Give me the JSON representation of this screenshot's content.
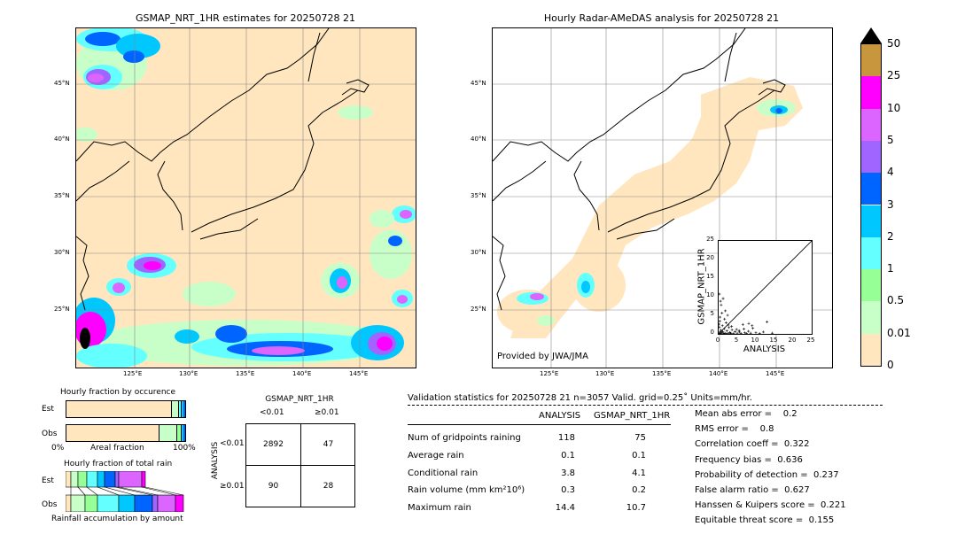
{
  "left_map": {
    "title": "GSMAP_NRT_1HR estimates for 20250728 21",
    "lat_labels": [
      "45°N",
      "40°N",
      "35°N",
      "30°N",
      "25°N"
    ],
    "lon_labels": [
      "125°E",
      "130°E",
      "135°E",
      "140°E",
      "145°E"
    ]
  },
  "right_map": {
    "title": "Hourly Radar-AMeDAS analysis for 20250728 21",
    "lat_labels": [
      "45°N",
      "40°N",
      "35°N",
      "30°N",
      "25°N"
    ],
    "lon_labels": [
      "125°E",
      "130°E",
      "135°E",
      "140°E",
      "145°E"
    ],
    "credit": "Provided by JWA/JMA"
  },
  "colorbar": {
    "labels": [
      "50",
      "25",
      "10",
      "5",
      "4",
      "3",
      "2",
      "1",
      "0.5",
      "0.01",
      "0"
    ],
    "colors": [
      "#c8963c",
      "#ff00ff",
      "#dc64ff",
      "#a064ff",
      "#0064ff",
      "#00c8ff",
      "#64ffff",
      "#96ff96",
      "#c8ffc8",
      "#ffe6be"
    ],
    "over_color": "#000000"
  },
  "occurrence": {
    "title": "Hourly fraction by occurence",
    "rows": [
      "Est",
      "Obs"
    ],
    "axis_left": "0%",
    "axis_mid": "Areal fraction",
    "axis_right": "100%"
  },
  "total_rain": {
    "title": "Hourly fraction of total rain",
    "rows": [
      "Est",
      "Obs"
    ],
    "footer": "Rainfall accumulation by amount"
  },
  "contingency": {
    "title": "GSMAP_NRT_1HR",
    "col_labels": [
      "<0.01",
      "≥0.01"
    ],
    "row_axis": "ANALYSIS",
    "row_labels": [
      "<0.01",
      "≥0.01"
    ],
    "cells": [
      [
        "2892",
        "47"
      ],
      [
        "90",
        "28"
      ]
    ]
  },
  "validation": {
    "header": "Validation statistics for 20250728 21  n=3057 Valid. grid=0.25˚ Units=mm/hr.",
    "col_analysis": "ANALYSIS",
    "col_gsmap": "GSMAP_NRT_1HR",
    "rows": [
      {
        "label": "Num of gridpoints raining",
        "analysis": "118",
        "gsmap": "75"
      },
      {
        "label": "Average rain",
        "analysis": "0.1",
        "gsmap": "0.1"
      },
      {
        "label": "Conditional rain",
        "analysis": "3.8",
        "gsmap": "4.1"
      },
      {
        "label": "Rain volume (mm km²10⁶)",
        "analysis": "0.3",
        "gsmap": "0.2"
      },
      {
        "label": "Maximum rain",
        "analysis": "14.4",
        "gsmap": "10.7"
      }
    ],
    "scores": [
      "Mean abs error =    0.2",
      "RMS error =    0.8",
      "Correlation coeff =  0.322",
      "Frequency bias =  0.636",
      "Probability of detection =  0.237",
      "False alarm ratio =  0.627",
      "Hanssen & Kuipers score =  0.221",
      "Equitable threat score =  0.155"
    ]
  },
  "chart_data": {
    "type": "scatter",
    "title": "",
    "xlabel": "ANALYSIS",
    "ylabel": "GSMAP_NRT_1HR",
    "xlim": [
      0,
      25
    ],
    "ylim": [
      0,
      25
    ],
    "x_ticks": [
      "0",
      "5",
      "10",
      "15",
      "20",
      "25"
    ],
    "y_ticks": [
      "0",
      "5",
      "10",
      "15",
      "20",
      "25"
    ],
    "diagonal": true,
    "points": [
      [
        0.2,
        0.1
      ],
      [
        0.3,
        0.5
      ],
      [
        0.5,
        0.2
      ],
      [
        0.6,
        1.0
      ],
      [
        0.8,
        0.3
      ],
      [
        1.0,
        2.2
      ],
      [
        1.1,
        0.6
      ],
      [
        1.3,
        0.1
      ],
      [
        1.5,
        1.4
      ],
      [
        1.7,
        0.2
      ],
      [
        2.0,
        3.0
      ],
      [
        2.2,
        0.8
      ],
      [
        2.5,
        0.1
      ],
      [
        2.8,
        1.7
      ],
      [
        3.0,
        0.4
      ],
      [
        3.3,
        0.2
      ],
      [
        3.6,
        1.1
      ],
      [
        4.0,
        0.1
      ],
      [
        4.4,
        0.6
      ],
      [
        5.0,
        0.2
      ],
      [
        5.5,
        0.9
      ],
      [
        6.0,
        0.1
      ],
      [
        6.5,
        2.5
      ],
      [
        7.0,
        0.3
      ],
      [
        7.5,
        0.1
      ],
      [
        8.0,
        0.7
      ],
      [
        8.6,
        0.2
      ],
      [
        9.2,
        1.5
      ],
      [
        10.0,
        0.3
      ],
      [
        11.0,
        0.1
      ],
      [
        12.0,
        0.5
      ],
      [
        14.4,
        0.2
      ],
      [
        0.4,
        4.5
      ],
      [
        0.7,
        7.8
      ],
      [
        0.2,
        10.7
      ],
      [
        1.2,
        9.5
      ],
      [
        0.9,
        5.6
      ],
      [
        1.8,
        6.2
      ],
      [
        0.3,
        3.4
      ],
      [
        2.4,
        5.0
      ],
      [
        0.6,
        0.0
      ],
      [
        1.4,
        0.0
      ],
      [
        2.1,
        0.0
      ],
      [
        3.2,
        0.0
      ],
      [
        0.1,
        2.6
      ],
      [
        0.2,
        1.8
      ],
      [
        4.8,
        1.2
      ],
      [
        6.8,
        1.3
      ],
      [
        9.0,
        2.2
      ],
      [
        8.1,
        2.8
      ],
      [
        13.0,
        3.2
      ],
      [
        3.5,
        2.0
      ],
      [
        0.5,
        8.8
      ],
      [
        1.6,
        4.0
      ],
      [
        2.6,
        2.4
      ],
      [
        5.6,
        0.5
      ]
    ]
  }
}
